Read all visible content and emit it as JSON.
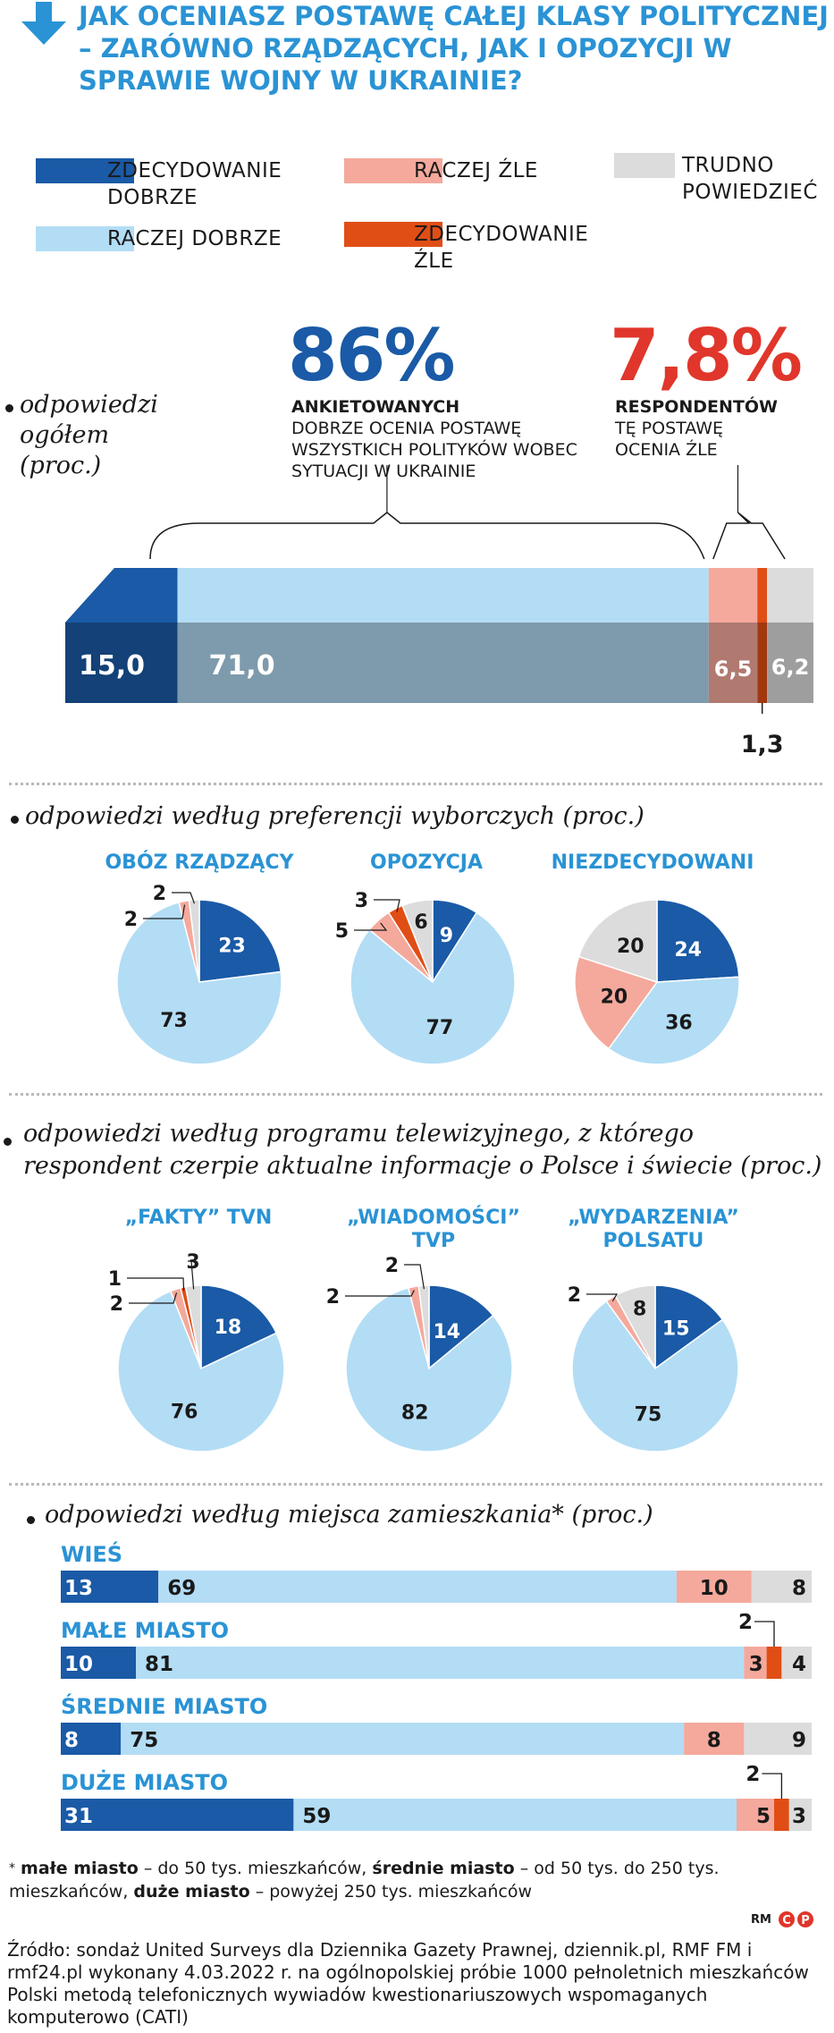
{
  "title": "JAK OCENIASZ POSTAWĘ CAŁEJ KLASY POLITYCZNEJ – ZARÓWNO RZĄDZĄCYCH, JAK I OPOZYCJI W SPRAWIE WOJNY W UKRAINIE?",
  "icon": "arrow-down-icon",
  "colors": {
    "zdecydowanie_dobrze": "#1a5aa6",
    "raczej_dobrze": "#b3ddf5",
    "raczej_zle": "#f4a99c",
    "zdecydowanie_zle": "#e04e16",
    "trudno": "#dcdcdc",
    "accent": "#2a93d5",
    "red": "#e0362b"
  },
  "legend": [
    {
      "key": "zdecydowanie_dobrze",
      "label": "ZDECYDOWANIE DOBRZE"
    },
    {
      "key": "raczej_dobrze",
      "label": "RACZEJ DOBRZE"
    },
    {
      "key": "raczej_zle",
      "label": "RACZEJ ŹLE"
    },
    {
      "key": "zdecydowanie_zle",
      "label": "ZDECYDOWANIE ŹLE"
    },
    {
      "key": "trudno",
      "label": "TRUDNO POWIEDZIEĆ"
    }
  ],
  "overall": {
    "heading": "odpowiedzi ogółem (proc.)",
    "good_pct": "86%",
    "good_bold": "ANKIETOWANYCH",
    "good_text": "DOBRZE OCENIA POSTAWĘ WSZYSTKICH POLITYKÓW WOBEC SYTUACJI W UKRAINIE",
    "bad_pct": "7,8%",
    "bad_bold": "RESPONDENTÓW",
    "bad_text": "TĘ POSTAWĘ OCENIA ŹLE"
  },
  "sections": {
    "preferences": "odpowiedzi według preferencji wyborczych (proc.)",
    "tv": "odpowiedzi według programu telewizyjnego, z którego respondent czerpie aktualne informacje o Polsce i świecie (proc.)",
    "residence": "odpowiedzi według miejsca zamieszkania* (proc.)"
  },
  "chart_data": [
    {
      "type": "bar",
      "orientation": "horizontal-stacked",
      "title": "odpowiedzi ogółem (proc.)",
      "series": [
        {
          "name": "ZDECYDOWANIE DOBRZE",
          "values": [
            15.0
          ],
          "labels": [
            "15,0"
          ]
        },
        {
          "name": "RACZEJ DOBRZE",
          "values": [
            71.0
          ],
          "labels": [
            "71,0"
          ]
        },
        {
          "name": "RACZEJ ŹLE",
          "values": [
            6.5
          ],
          "labels": [
            "6,5"
          ]
        },
        {
          "name": "ZDECYDOWANIE ŹLE",
          "values": [
            1.3
          ],
          "labels": [
            "1,3"
          ]
        },
        {
          "name": "TRUDNO POWIEDZIEĆ",
          "values": [
            6.2
          ],
          "labels": [
            "6,2"
          ]
        }
      ]
    },
    {
      "type": "pie",
      "group": "odpowiedzi według preferencji wyborczych (proc.)",
      "pies": [
        {
          "title": "OBÓZ RZĄDZĄCY",
          "values": [
            23,
            73,
            2,
            0,
            2
          ],
          "labels": [
            "23",
            "73",
            "2",
            "",
            "2"
          ]
        },
        {
          "title": "OPOZYCJA",
          "values": [
            9,
            77,
            5,
            3,
            6
          ],
          "labels": [
            "9",
            "77",
            "5",
            "3",
            "6"
          ]
        },
        {
          "title": "NIEZDECYDOWANI",
          "values": [
            24,
            36,
            20,
            0,
            20
          ],
          "labels": [
            "24",
            "36",
            "20",
            "",
            "20"
          ]
        }
      ]
    },
    {
      "type": "pie",
      "group": "odpowiedzi według programu telewizyjnego (proc.)",
      "pies": [
        {
          "title": "„FAKTY” TVN",
          "values": [
            18,
            76,
            2,
            1,
            3
          ],
          "labels": [
            "18",
            "76",
            "2",
            "1",
            "3"
          ]
        },
        {
          "title": "„WIADOMOŚCI” TVP",
          "values": [
            14,
            82,
            2,
            0,
            2
          ],
          "labels": [
            "14",
            "82",
            "2",
            "",
            "2"
          ]
        },
        {
          "title": "„WYDARZENIA” POLSATU",
          "values": [
            15,
            75,
            2,
            0,
            8
          ],
          "labels": [
            "15",
            "75",
            "2",
            "",
            "8"
          ]
        }
      ]
    },
    {
      "type": "bar",
      "orientation": "horizontal-stacked",
      "title": "odpowiedzi według miejsca zamieszkania* (proc.)",
      "categories": [
        "WIEŚ",
        "MAŁE MIASTO",
        "ŚREDNIE  MIASTO",
        "DUŻE MIASTO"
      ],
      "series": [
        {
          "name": "ZDECYDOWANIE DOBRZE",
          "values": [
            13,
            10,
            8,
            31
          ]
        },
        {
          "name": "RACZEJ DOBRZE",
          "values": [
            69,
            81,
            75,
            59
          ]
        },
        {
          "name": "RACZEJ ŹLE",
          "values": [
            10,
            3,
            8,
            5
          ]
        },
        {
          "name": "ZDECYDOWANIE ŹLE",
          "values": [
            0,
            2,
            0,
            2
          ]
        },
        {
          "name": "TRUDNO POWIEDZIEĆ",
          "values": [
            8,
            4,
            9,
            3
          ]
        }
      ]
    }
  ],
  "footnote": {
    "star": "*",
    "b1": "małe miasto",
    "t1": " – do 50 tys. mieszkańców, ",
    "b2": "średnie miasto",
    "t2": " – od 50 tys. do 250 tys. mieszkańców, ",
    "b3": "duże miasto",
    "t3": " – powyżej 250 tys. mieszkańców"
  },
  "credit": "RM",
  "source": "Źródło: sondaż United Surveys dla Dziennika Gazety Prawnej, dziennik.pl, RMF FM i rmf24.pl wykonany 4.03.2022 r. na ogólnopolskiej próbie 1000 pełnoletnich mieszkańców Polski metodą telefonicznych wywiadów kwestionariuszowych wspomaganych komputerowo (CATI)"
}
